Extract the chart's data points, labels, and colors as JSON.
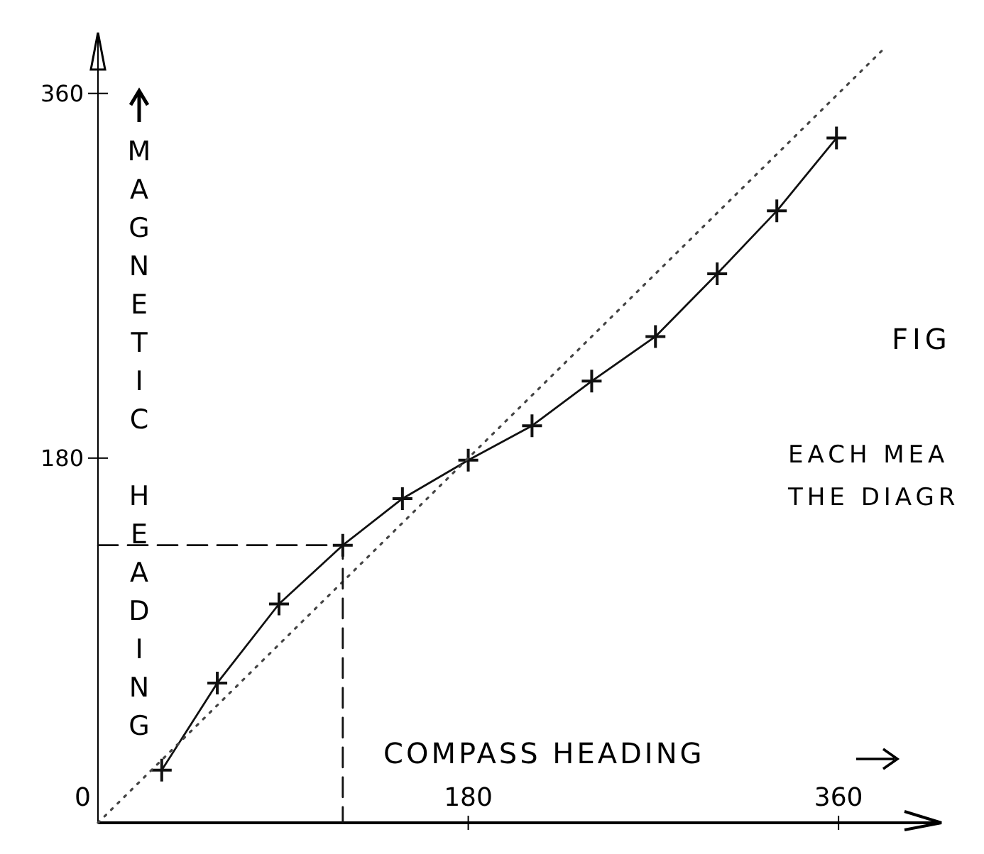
{
  "chart_data": {
    "type": "line",
    "xlabel": "COMPASS HEADING",
    "ylabel": "MAGNETIC HEADING",
    "xlim": [
      0,
      410
    ],
    "ylim": [
      0,
      390
    ],
    "xticks": [
      0,
      180,
      360
    ],
    "yticks": [
      180,
      360
    ],
    "series": [
      {
        "color": "#111111",
        "marker": "cross",
        "line_style": "solid",
        "x": [
          31,
          58,
          88,
          119,
          148,
          180,
          211,
          240,
          271,
          301,
          330,
          359
        ],
        "values": [
          26,
          69,
          108,
          137,
          160,
          179,
          196,
          218,
          240,
          271,
          302,
          338
        ]
      },
      {
        "color": "#444444",
        "marker": "none",
        "line_style": "dotted",
        "x": [
          0,
          383
        ],
        "values": [
          0,
          383
        ]
      },
      {
        "color": "#111111",
        "marker": "none",
        "line_style": "dashed",
        "x": [
          0,
          119,
          119
        ],
        "values": [
          137,
          137,
          0
        ]
      }
    ],
    "annotations": [
      "FIG",
      "EACH MEA",
      "THE DIAGR"
    ]
  }
}
